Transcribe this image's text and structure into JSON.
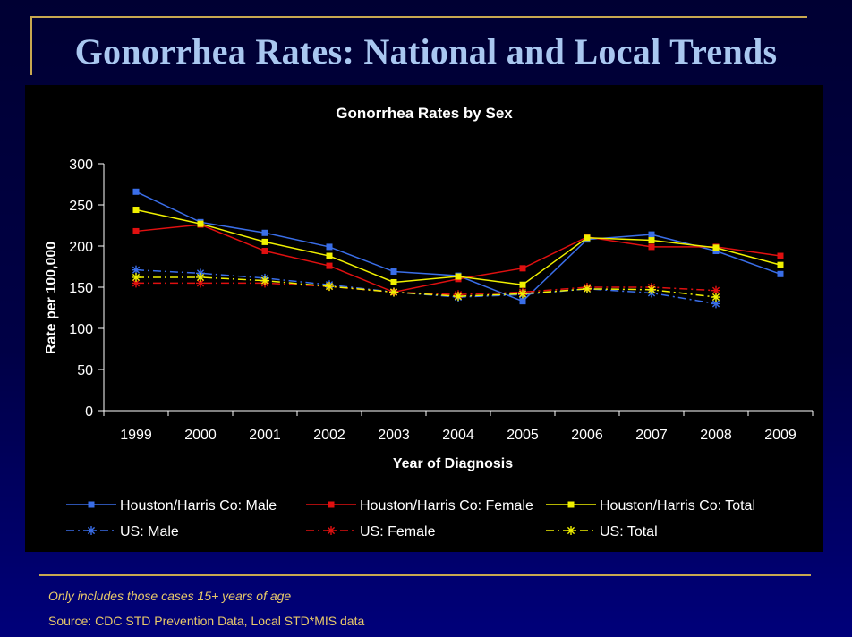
{
  "slide": {
    "title": "Gonorrhea Rates: National and Local Trends",
    "footnote": "Only includes those cases 15+ years of age",
    "source": "Source: CDC STD Prevention Data, Local STD*MIS data"
  },
  "chart_data": {
    "type": "line",
    "title": "Gonorrhea Rates by Sex",
    "xlabel": "Year of Diagnosis",
    "ylabel": "Rate per 100,000",
    "ylim": [
      0,
      300
    ],
    "yticks": [
      0,
      50,
      100,
      150,
      200,
      250,
      300
    ],
    "x": [
      "1999",
      "2000",
      "2001",
      "2002",
      "2003",
      "2004",
      "2005",
      "2006",
      "2007",
      "2008",
      "2009"
    ],
    "grid": false,
    "legend_position": "bottom",
    "series": [
      {
        "name": "Houston/Harris Co: Male",
        "color": "#3a6ee8",
        "style": "solid",
        "marker": "square",
        "values": [
          266,
          229,
          216,
          199,
          169,
          164,
          133,
          208,
          214,
          194,
          166
        ]
      },
      {
        "name": "Houston/Harris Co: Female",
        "color": "#e01010",
        "style": "solid",
        "marker": "square",
        "values": [
          218,
          226,
          194,
          176,
          144,
          160,
          173,
          211,
          199,
          199,
          188
        ]
      },
      {
        "name": "Houston/Harris Co: Total",
        "color": "#f0f000",
        "style": "solid",
        "marker": "square",
        "values": [
          244,
          227,
          205,
          188,
          156,
          163,
          153,
          210,
          207,
          198,
          177
        ]
      },
      {
        "name": "US: Male",
        "color": "#3a6ee8",
        "style": "dashdot",
        "marker": "asterisk",
        "values": [
          171,
          167,
          161,
          153,
          144,
          138,
          141,
          148,
          143,
          130,
          null
        ]
      },
      {
        "name": "US: Female",
        "color": "#e01010",
        "style": "dashdot",
        "marker": "asterisk",
        "values": [
          155,
          155,
          155,
          151,
          144,
          141,
          144,
          150,
          150,
          146,
          null
        ]
      },
      {
        "name": "US: Total",
        "color": "#f0f000",
        "style": "dashdot",
        "marker": "asterisk",
        "values": [
          162,
          162,
          158,
          151,
          144,
          139,
          142,
          148,
          147,
          138,
          null
        ]
      }
    ]
  }
}
